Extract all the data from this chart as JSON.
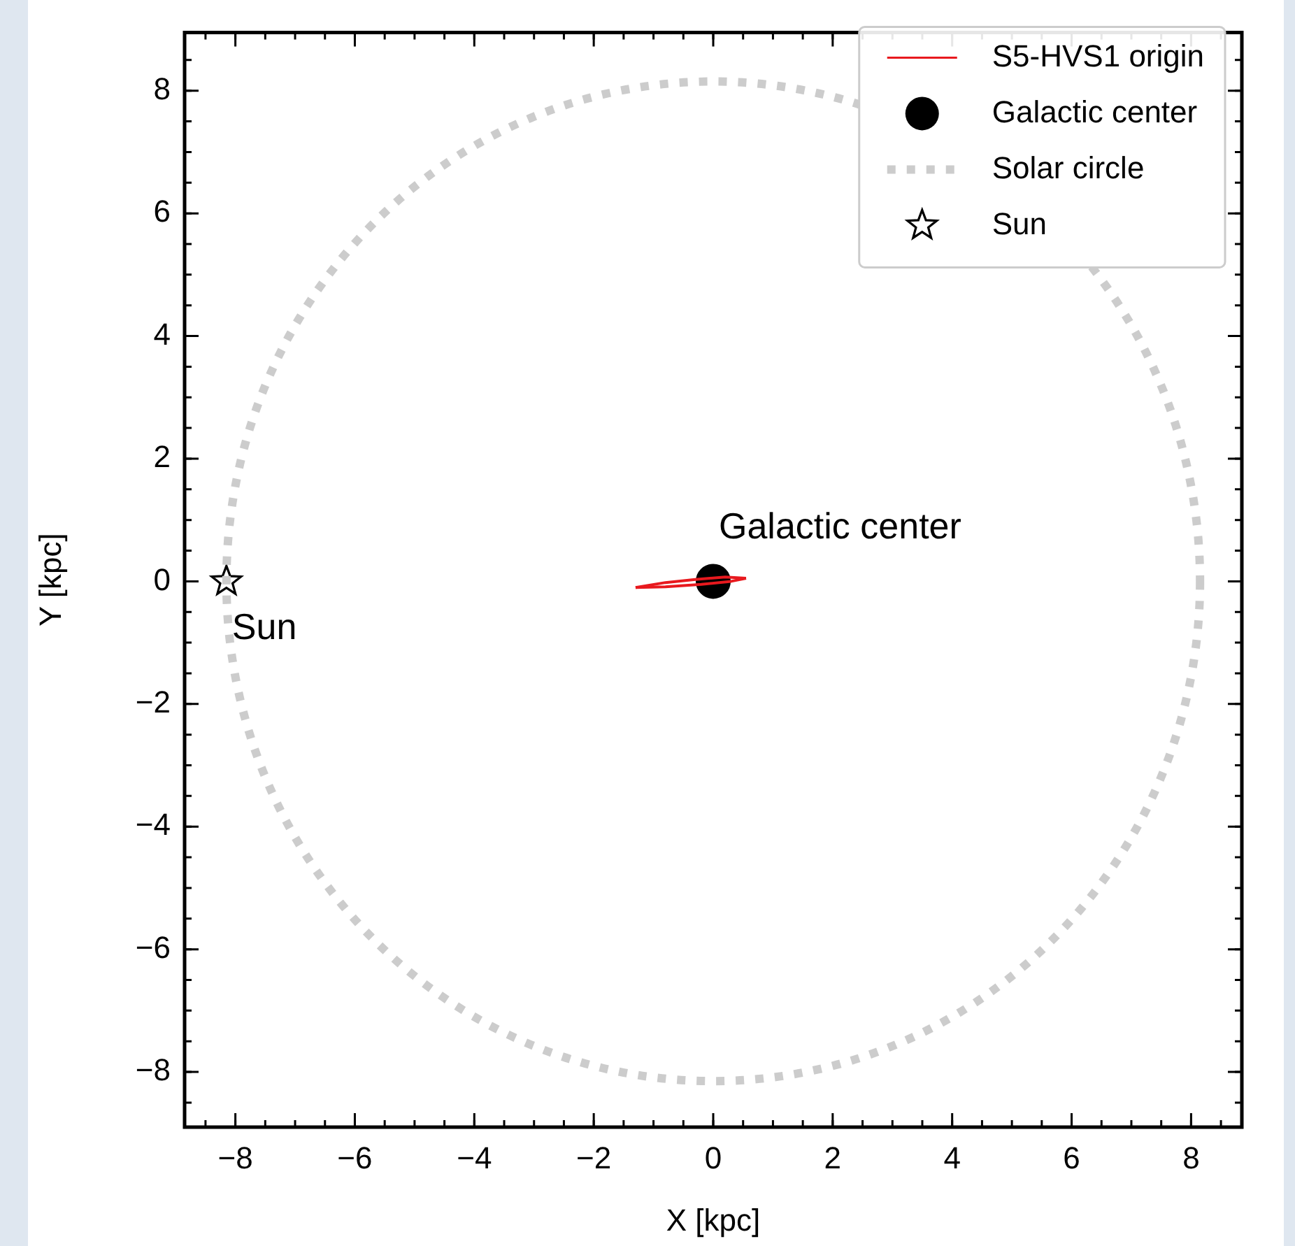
{
  "chart_data": {
    "type": "line",
    "xlabel": "X [kpc]",
    "ylabel": "Y [kpc]",
    "xlim": [
      -8.85,
      8.85
    ],
    "ylim": [
      -8.9,
      8.95
    ],
    "xticks": [
      {
        "value": -8,
        "label": "−8"
      },
      {
        "value": -6,
        "label": "−6"
      },
      {
        "value": -4,
        "label": "−4"
      },
      {
        "value": -2,
        "label": "−2"
      },
      0,
      2,
      4,
      6,
      8
    ],
    "yticks": [
      {
        "value": -8,
        "label": "−8"
      },
      {
        "value": -6,
        "label": "−6"
      },
      {
        "value": -4,
        "label": "−4"
      },
      {
        "value": -2,
        "label": "−2"
      },
      0,
      2,
      4,
      6,
      8
    ],
    "grid": false,
    "legend": "top right",
    "annotations": [
      {
        "text": "Galactic center",
        "x": 0,
        "y": 0
      },
      {
        "text": "Sun",
        "x": -8.15,
        "y": 0
      },
      "Solar circle"
    ],
    "series": [
      {
        "name": "S5-HVS1 origin",
        "color": "#e8191e",
        "line_style": "solid",
        "marker": "none",
        "x": [
          -1.3,
          -0.8,
          -0.3,
          0.2,
          0.55
        ],
        "values": [
          -0.1,
          -0.02,
          0.03,
          0.07,
          0.05
        ]
      },
      {
        "color": "#e8191e",
        "line_style": "solid",
        "marker": "none",
        "x": [
          -1.3,
          -0.8,
          -0.2,
          0.3,
          0.55
        ],
        "values": [
          -0.1,
          -0.09,
          -0.05,
          0.0,
          0.05
        ]
      },
      {
        "name": "Galactic center",
        "type": "scatter",
        "color": "#000000",
        "marker": "circle",
        "x": [
          0
        ],
        "values": [
          0
        ]
      },
      {
        "name": "Sun",
        "type": "scatter",
        "color": "#000000",
        "marker": "star",
        "x": [
          -8.15
        ],
        "values": [
          0
        ]
      }
    ]
  }
}
